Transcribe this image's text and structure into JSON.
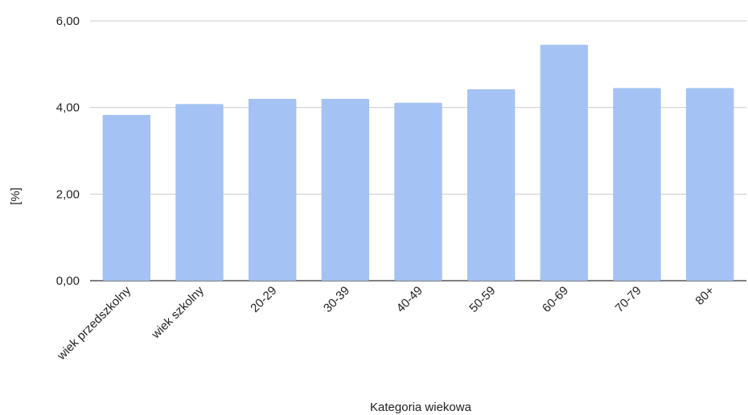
{
  "chart_data": {
    "type": "bar",
    "title": "",
    "xlabel": "Kategoria wiekowa",
    "ylabel": "[%]",
    "categories": [
      "wiek przedszkolny",
      "wiek szkolny",
      "20-29",
      "30-39",
      "40-49",
      "50-59",
      "60-69",
      "70-79",
      "80+"
    ],
    "values": [
      3.83,
      4.08,
      4.2,
      4.2,
      4.11,
      4.42,
      5.45,
      4.45,
      4.45
    ],
    "ylim": [
      0,
      6
    ],
    "yticks": [
      0,
      2,
      4,
      6
    ],
    "ytick_labels": [
      "0,00",
      "2,00",
      "4,00",
      "6,00"
    ],
    "grid": true,
    "legend": "none",
    "bar_color": "#a4c2f4"
  }
}
